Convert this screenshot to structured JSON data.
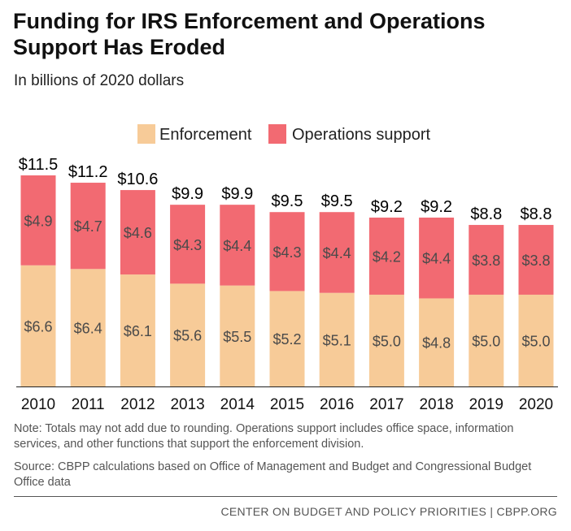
{
  "title": "Funding for IRS Enforcement and Operations Support Has Eroded",
  "subtitle": "In billions of 2020 dollars",
  "note": "Note: Totals may not add due to rounding. Operations support includes office space, information services, and other functions that support the enforcement division.",
  "source": "Source: CBPP calculations based on Office of Management and Budget and Congressional Budget Office data",
  "footer": "CENTER ON BUDGET AND POLICY PRIORITIES | CBPP.ORG",
  "chart_data": {
    "type": "bar",
    "stacked": true,
    "categories": [
      "2010",
      "2011",
      "2012",
      "2013",
      "2014",
      "2015",
      "2016",
      "2017",
      "2018",
      "2019",
      "2020"
    ],
    "series": [
      {
        "name": "Enforcement",
        "color": "#f7cb98",
        "values": [
          6.6,
          6.4,
          6.1,
          5.6,
          5.5,
          5.2,
          5.1,
          5.0,
          4.8,
          5.0,
          5.0
        ],
        "labels": [
          "$6.6",
          "$6.4",
          "$6.1",
          "$5.6",
          "$5.5",
          "$5.2",
          "$5.1",
          "$5.0",
          "$4.8",
          "$5.0",
          "$5.0"
        ]
      },
      {
        "name": "Operations support",
        "color": "#f26a72",
        "values": [
          4.9,
          4.7,
          4.6,
          4.3,
          4.4,
          4.3,
          4.4,
          4.2,
          4.4,
          3.8,
          3.8
        ],
        "labels": [
          "$4.9",
          "$4.7",
          "$4.6",
          "$4.3",
          "$4.4",
          "$4.3",
          "$4.4",
          "$4.2",
          "$4.4",
          "$3.8",
          "$3.8"
        ]
      }
    ],
    "totals": [
      11.5,
      11.2,
      10.6,
      9.9,
      9.9,
      9.5,
      9.5,
      9.2,
      9.2,
      8.8,
      8.8
    ],
    "total_labels": [
      "$11.5",
      "$11.2",
      "$10.6",
      "$9.9",
      "$9.9",
      "$9.5",
      "$9.5",
      "$9.2",
      "$9.2",
      "$8.8",
      "$8.8"
    ],
    "ylim": [
      0,
      11.5
    ],
    "grid": false,
    "legend_position": "top-center"
  }
}
